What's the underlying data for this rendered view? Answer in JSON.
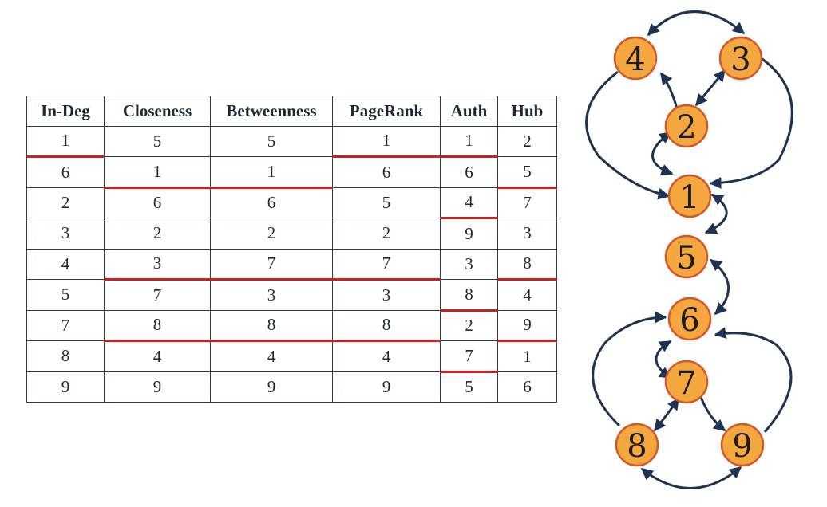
{
  "table": {
    "columns": [
      "In-Deg",
      "Closeness",
      "Betweenness",
      "PageRank",
      "Auth",
      "Hub"
    ],
    "rows": [
      [
        "1",
        "5",
        "5",
        "1",
        "1",
        "2"
      ],
      [
        "6",
        "1",
        "1",
        "6",
        "6",
        "5"
      ],
      [
        "2",
        "6",
        "6",
        "5",
        "4",
        "7"
      ],
      [
        "3",
        "2",
        "2",
        "2",
        "9",
        "3"
      ],
      [
        "4",
        "3",
        "7",
        "7",
        "3",
        "8"
      ],
      [
        "5",
        "7",
        "3",
        "3",
        "8",
        "4"
      ],
      [
        "7",
        "8",
        "8",
        "8",
        "2",
        "9"
      ],
      [
        "8",
        "4",
        "4",
        "4",
        "7",
        "1"
      ],
      [
        "9",
        "9",
        "9",
        "9",
        "5",
        "6"
      ]
    ],
    "red_cut_after_row": [
      [
        1,
        0,
        0,
        1,
        1,
        0
      ],
      [
        0,
        1,
        1,
        0,
        0,
        1
      ],
      [
        0,
        0,
        0,
        0,
        1,
        0
      ],
      [
        0,
        0,
        0,
        0,
        0,
        0
      ],
      [
        0,
        1,
        1,
        1,
        0,
        1
      ],
      [
        0,
        0,
        0,
        0,
        1,
        0
      ],
      [
        0,
        1,
        1,
        1,
        0,
        1
      ],
      [
        0,
        0,
        0,
        0,
        1,
        0
      ],
      [
        0,
        0,
        0,
        0,
        0,
        0
      ]
    ],
    "cut_color": "#cc1f1f"
  },
  "graph": {
    "nodes": [
      "1",
      "2",
      "3",
      "4",
      "5",
      "6",
      "7",
      "8",
      "9"
    ],
    "node_fill": "#f4a63f",
    "node_stroke": "#d2572a",
    "edge_color": "#1e3352"
  }
}
